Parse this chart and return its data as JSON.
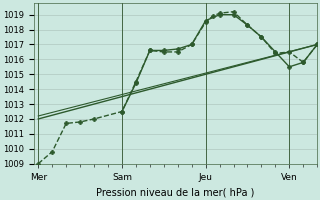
{
  "background_color": "#cce8e0",
  "grid_color": "#b0c8c0",
  "line_color": "#2d5a2d",
  "xlabel": "Pression niveau de la mer( hPa )",
  "ylim": [
    1009,
    1019.8
  ],
  "yticks": [
    1009,
    1010,
    1011,
    1012,
    1013,
    1014,
    1015,
    1016,
    1017,
    1018,
    1019
  ],
  "day_labels": [
    "Mer",
    "Sam",
    "Jeu",
    "Ven"
  ],
  "day_positions": [
    0,
    36,
    72,
    108
  ],
  "xlim": [
    -2,
    120
  ],
  "series": [
    {
      "x": [
        0,
        6,
        12,
        18,
        24,
        36,
        42,
        48,
        54,
        60,
        66,
        72,
        75,
        78,
        84,
        90,
        96,
        102,
        108,
        114,
        120
      ],
      "y": [
        1009.0,
        1009.8,
        1011.7,
        1011.8,
        1012.0,
        1012.5,
        1014.5,
        1016.6,
        1016.5,
        1016.5,
        1017.0,
        1018.5,
        1018.9,
        1019.1,
        1019.2,
        1018.3,
        1017.5,
        1016.4,
        1016.5,
        1015.8,
        1017.0
      ],
      "marker": "P",
      "markersize": 3,
      "linewidth": 1.0,
      "linestyle": "--"
    },
    {
      "x": [
        36,
        42,
        48,
        54,
        60,
        66,
        72,
        78,
        84,
        90,
        96,
        102,
        108,
        114,
        120
      ],
      "y": [
        1012.5,
        1014.4,
        1016.6,
        1016.6,
        1016.7,
        1017.0,
        1018.6,
        1019.0,
        1019.0,
        1018.3,
        1017.5,
        1016.5,
        1015.5,
        1015.8,
        1017.0
      ],
      "marker": "P",
      "markersize": 3,
      "linewidth": 1.0,
      "linestyle": "-"
    },
    {
      "x": [
        0,
        120
      ],
      "y": [
        1012.0,
        1017.0
      ],
      "marker": null,
      "markersize": 0,
      "linewidth": 1.0,
      "linestyle": "-"
    },
    {
      "x": [
        0,
        120
      ],
      "y": [
        1012.2,
        1017.0
      ],
      "marker": null,
      "markersize": 0,
      "linewidth": 0.8,
      "linestyle": "-"
    }
  ]
}
